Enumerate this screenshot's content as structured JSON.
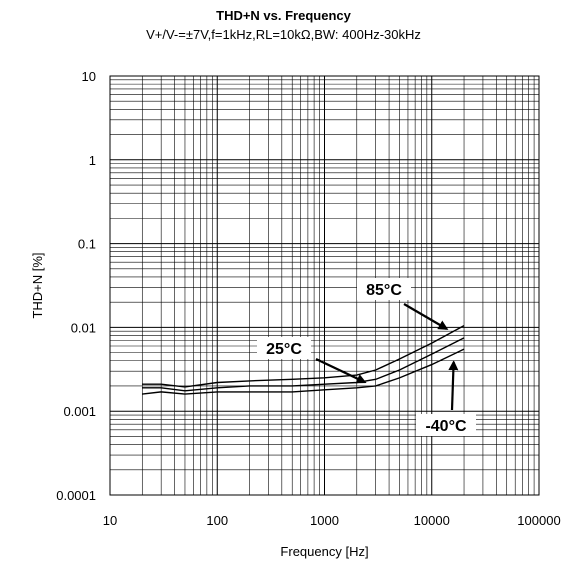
{
  "chart_data": {
    "type": "line",
    "title": "THD+N vs. Frequency",
    "subtitle": "V+/V-=±7V,f=1kHz,RL=10kΩ,BW: 400Hz-30kHz",
    "xlabel": "Frequency [Hz]",
    "ylabel": "THD+N  [%]",
    "x_scale": "log",
    "y_scale": "log",
    "xlim": [
      10,
      100000
    ],
    "ylim": [
      0.0001,
      10
    ],
    "grid": true,
    "x_ticks": [
      "10",
      "100",
      "1000",
      "10000",
      "100000"
    ],
    "y_ticks": [
      "0.0001",
      "0.001",
      "0.01",
      "0.1",
      "1",
      "10"
    ],
    "series": [
      {
        "name": "85°C",
        "x": [
          20,
          30,
          50,
          100,
          200,
          500,
          1000,
          2000,
          3000,
          5000,
          10000,
          20000
        ],
        "values": [
          0.0021,
          0.0021,
          0.00195,
          0.0022,
          0.0023,
          0.0024,
          0.0025,
          0.0027,
          0.0031,
          0.0042,
          0.0065,
          0.0105
        ]
      },
      {
        "name": "25°C",
        "x": [
          20,
          30,
          50,
          100,
          200,
          500,
          1000,
          2000,
          3000,
          5000,
          10000,
          20000
        ],
        "values": [
          0.0019,
          0.0019,
          0.00175,
          0.0019,
          0.002,
          0.002,
          0.0021,
          0.0022,
          0.0024,
          0.0031,
          0.0048,
          0.0075
        ]
      },
      {
        "name": "-40°C",
        "x": [
          20,
          30,
          50,
          100,
          200,
          500,
          1000,
          2000,
          3000,
          5000,
          10000,
          20000
        ],
        "values": [
          0.0016,
          0.0017,
          0.0016,
          0.0017,
          0.0017,
          0.0017,
          0.0018,
          0.0019,
          0.002,
          0.0025,
          0.0036,
          0.0055
        ]
      }
    ]
  }
}
